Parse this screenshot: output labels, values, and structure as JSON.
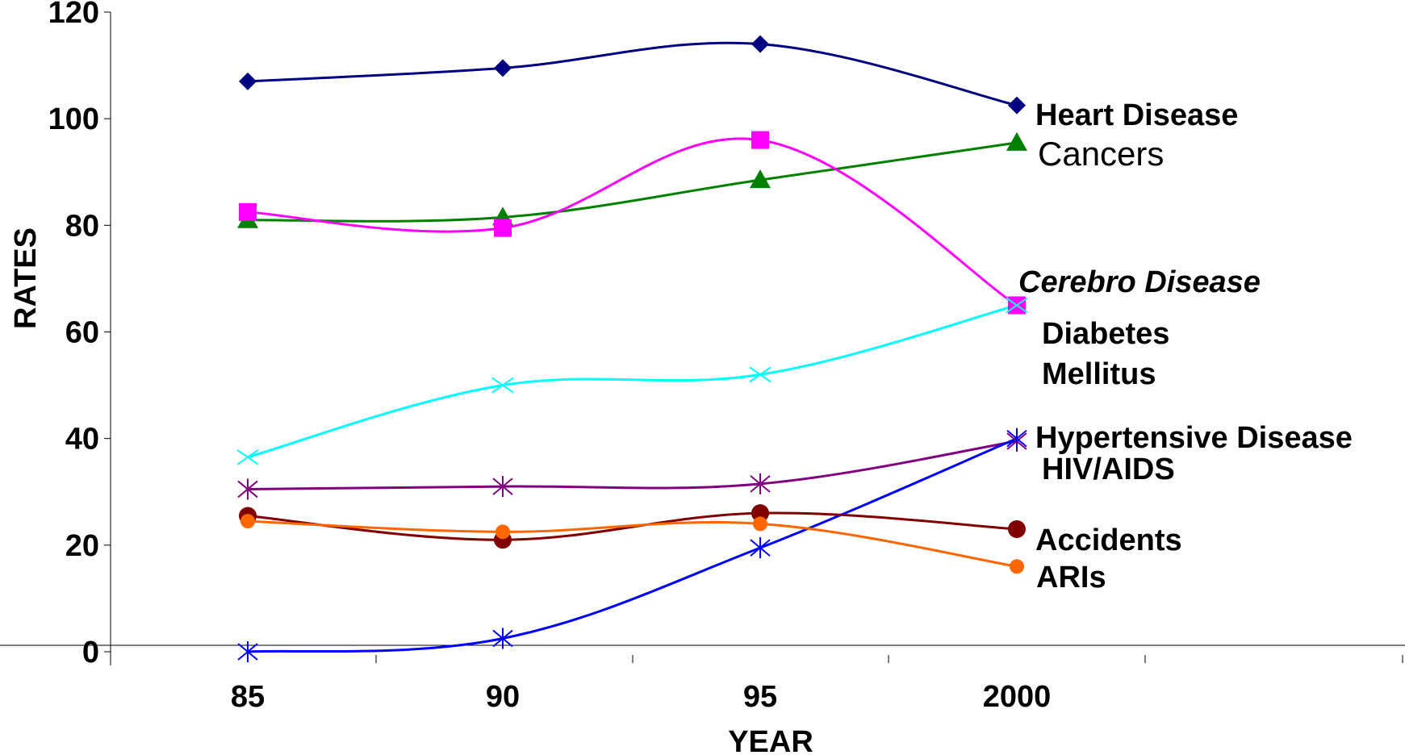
{
  "chart_data": {
    "type": "line",
    "title": "",
    "xlabel": "YEAR",
    "ylabel": "RATES",
    "categories": [
      "85",
      "90",
      "95",
      "2000"
    ],
    "yticks": [
      "0",
      "20",
      "40",
      "60",
      "80",
      "100",
      "120"
    ],
    "ylim": [
      0,
      120
    ],
    "grid": false,
    "series": [
      {
        "name": "Heart Disease",
        "values": [
          107,
          109.5,
          114,
          102.5
        ],
        "color": "#000080",
        "marker": "diamond"
      },
      {
        "name": "Cancers",
        "values": [
          81,
          81.5,
          88.5,
          95.5
        ],
        "color": "#008000",
        "marker": "triangle"
      },
      {
        "name": "Cerebro Disease",
        "values": [
          82.5,
          79.5,
          96,
          65
        ],
        "color": "#FF00FF",
        "marker": "square"
      },
      {
        "name": "Diabetes Mellitus",
        "values": [
          36.5,
          50,
          52,
          65
        ],
        "color": "#00FFFF",
        "marker": "x"
      },
      {
        "name": "Hypertensive Disease",
        "values": [
          30.5,
          31,
          31.5,
          39.5
        ],
        "color": "#800080",
        "marker": "star"
      },
      {
        "name": "HIV/AIDS",
        "values": [
          0,
          2.5,
          19.5,
          40
        ],
        "color": "#0000FF",
        "marker": "star"
      },
      {
        "name": "Accidents",
        "values": [
          25.5,
          21,
          26,
          23
        ],
        "color": "#800000",
        "marker": "circle"
      },
      {
        "name": "ARIs",
        "values": [
          24.5,
          22.5,
          24,
          16
        ],
        "color": "#FF6600",
        "marker": "circle-small"
      }
    ],
    "labels": [
      {
        "lines": [
          "Heart Disease"
        ]
      },
      {
        "lines": [
          "Cancers"
        ]
      },
      {
        "lines": [
          "Cerebro Disease"
        ]
      },
      {
        "lines": [
          "Diabetes",
          "Mellitus"
        ]
      },
      {
        "lines": [
          "Hypertensive Disease"
        ]
      },
      {
        "lines": [
          "HIV/AIDS"
        ]
      },
      {
        "lines": [
          "Accidents"
        ]
      },
      {
        "lines": [
          "ARIs"
        ]
      }
    ]
  }
}
